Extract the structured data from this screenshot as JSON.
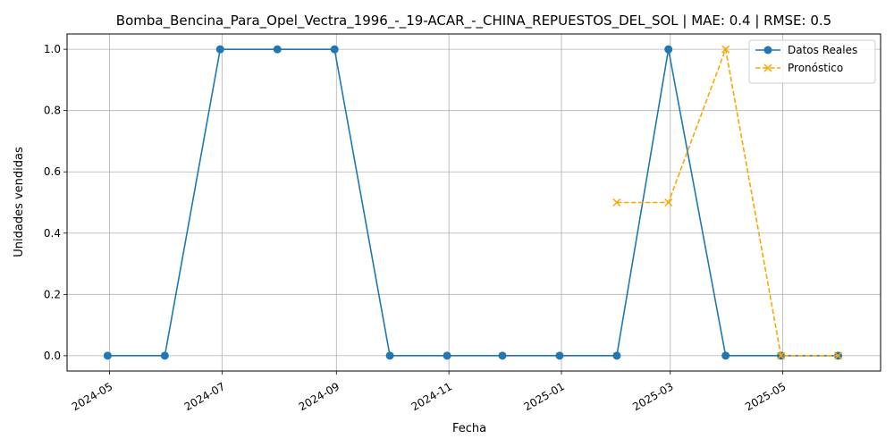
{
  "chart_data": {
    "type": "line",
    "title": "Bomba_Bencina_Para_Opel_Vectra_1996_-_19-ACAR_-_CHINA_REPUESTOS_DEL_SOL | MAE: 0.4 | RMSE: 0.5",
    "xlabel": "Fecha",
    "ylabel": "Unidades vendidas",
    "xlim": [
      "2024-04-08",
      "2025-06-23"
    ],
    "ylim": [
      -0.05,
      1.05
    ],
    "x_ticks": [
      "2024-05",
      "2024-07",
      "2024-09",
      "2024-11",
      "2025-01",
      "2025-03",
      "2025-05"
    ],
    "x_tick_dates": [
      "2024-05-01",
      "2024-07-01",
      "2024-09-01",
      "2024-11-01",
      "2025-01-01",
      "2025-03-01",
      "2025-05-01"
    ],
    "y_ticks": [
      "0.0",
      "0.2",
      "0.4",
      "0.6",
      "0.8",
      "1.0"
    ],
    "y_tick_values": [
      0.0,
      0.2,
      0.4,
      0.6,
      0.8,
      1.0
    ],
    "grid": true,
    "legend_position": "top-right",
    "series": [
      {
        "name": "Datos Reales",
        "color": "#1f77b4",
        "style": "solid",
        "marker": "circle",
        "x": [
          "2024-04-30",
          "2024-05-31",
          "2024-06-30",
          "2024-07-31",
          "2024-08-31",
          "2024-09-30",
          "2024-10-31",
          "2024-11-30",
          "2024-12-31",
          "2025-01-31",
          "2025-02-28",
          "2025-03-31",
          "2025-04-30",
          "2025-05-31"
        ],
        "values": [
          0,
          0,
          1,
          1,
          1,
          0,
          0,
          0,
          0,
          0,
          1,
          0,
          0,
          0
        ]
      },
      {
        "name": "Pronóstico",
        "color": "#ffa500",
        "style": "dashed",
        "marker": "x",
        "x": [
          "2025-01-31",
          "2025-02-28",
          "2025-03-31",
          "2025-04-30",
          "2025-05-31"
        ],
        "values": [
          0.5,
          0.5,
          1,
          0,
          0
        ]
      }
    ]
  }
}
